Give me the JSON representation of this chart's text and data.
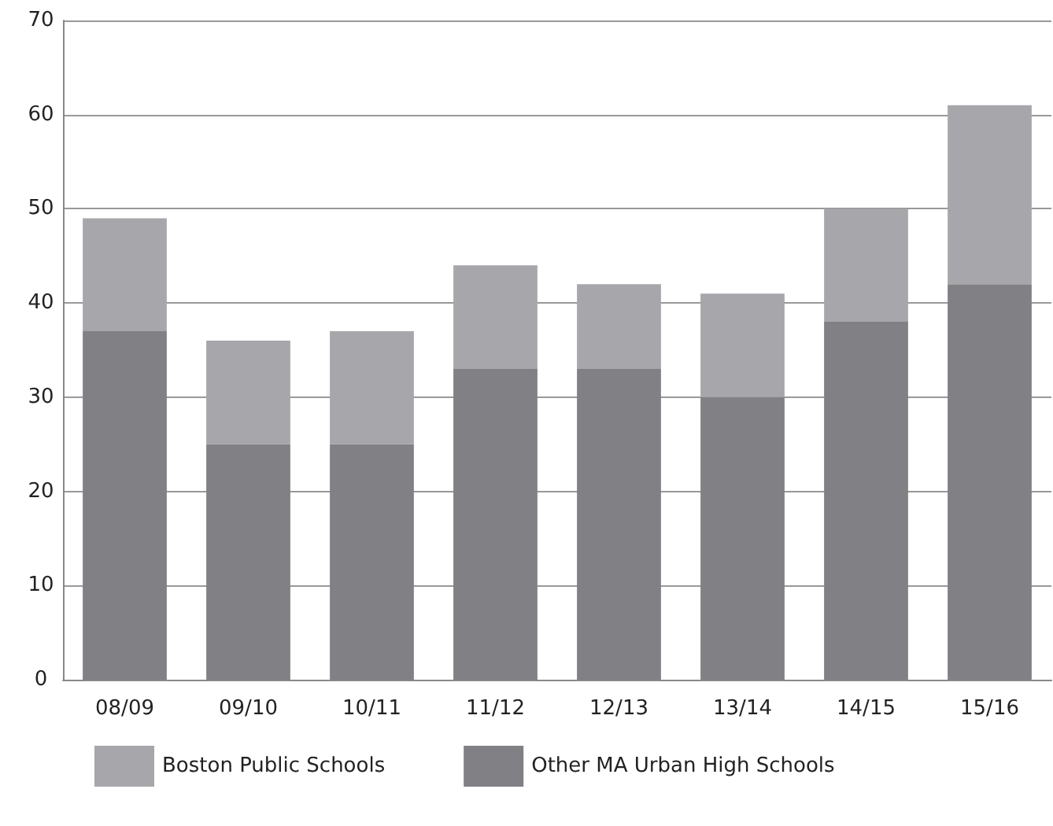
{
  "chart_data": {
    "type": "bar",
    "stacked": true,
    "categories": [
      "08/09",
      "09/10",
      "10/11",
      "11/12",
      "12/13",
      "13/14",
      "14/15",
      "15/16"
    ],
    "series": [
      {
        "name": "Other MA Urban High Schools",
        "color": "#808085",
        "values": [
          37,
          25,
          25,
          33,
          33,
          30,
          38,
          42
        ]
      },
      {
        "name": "Boston Public Schools",
        "color": "#a7a7ab",
        "values": [
          12,
          11,
          12,
          11,
          9,
          11,
          12,
          19
        ]
      }
    ],
    "ylim": [
      0,
      70
    ],
    "yticks": [
      0,
      10,
      20,
      30,
      40,
      50,
      60,
      70
    ],
    "grid": "y",
    "legend": "bottom"
  }
}
